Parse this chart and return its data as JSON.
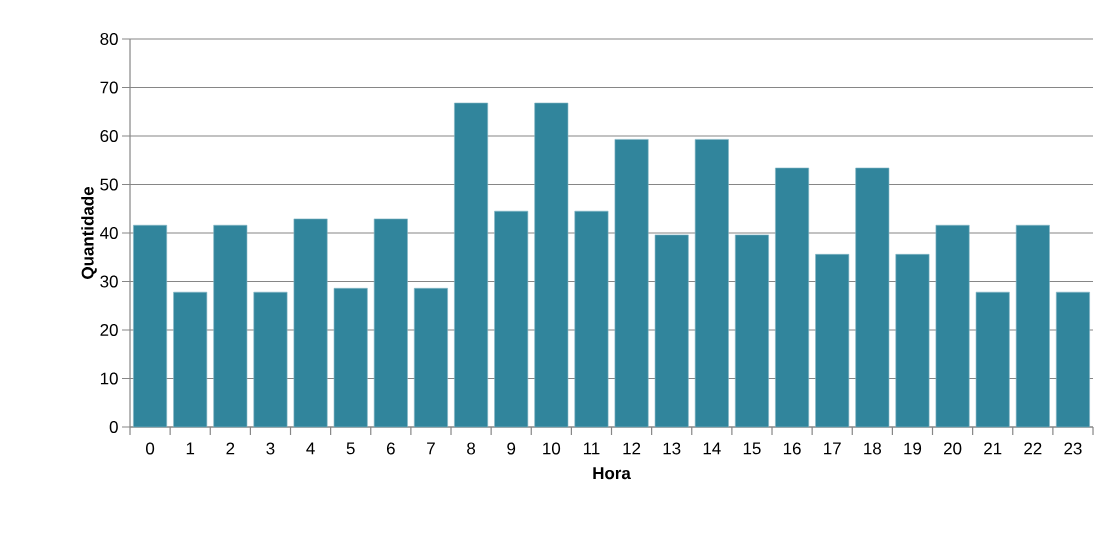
{
  "chart_data": {
    "type": "bar",
    "xlabel": "Hora",
    "ylabel": "Quantidade",
    "categories": [
      "0",
      "1",
      "2",
      "3",
      "4",
      "5",
      "6",
      "7",
      "8",
      "9",
      "10",
      "11",
      "12",
      "13",
      "14",
      "15",
      "16",
      "17",
      "18",
      "19",
      "20",
      "21",
      "22",
      "23"
    ],
    "values": [
      41.6,
      27.8,
      41.6,
      27.8,
      42.9,
      28.6,
      42.9,
      28.6,
      66.8,
      44.5,
      66.8,
      44.5,
      59.3,
      39.6,
      59.3,
      39.6,
      53.4,
      35.6,
      53.4,
      35.6,
      41.6,
      27.8,
      41.6,
      27.8
    ],
    "color": "#31859c",
    "ylim": [
      0,
      80
    ],
    "yticks": [
      0,
      10,
      20,
      30,
      40,
      50,
      60,
      70,
      80
    ],
    "grid": "y"
  }
}
